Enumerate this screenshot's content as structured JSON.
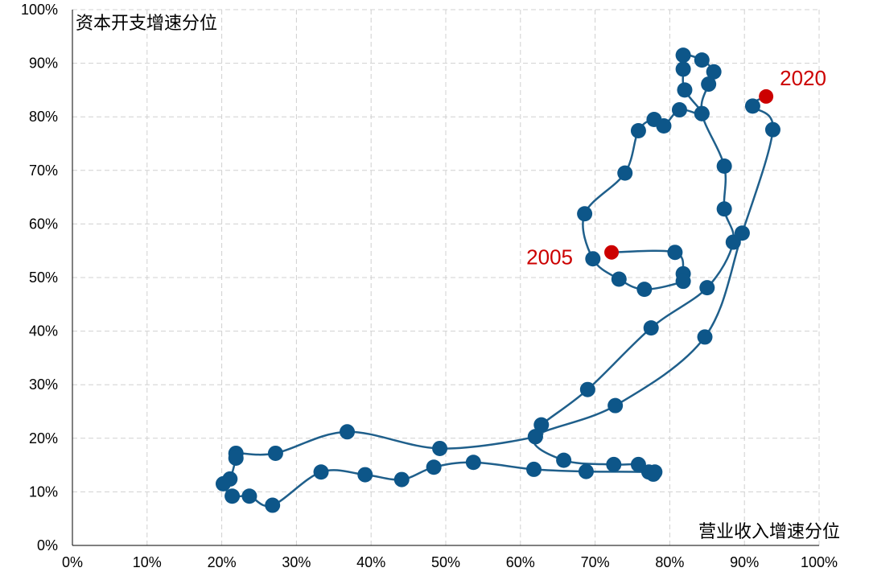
{
  "chart_data": {
    "type": "scatter",
    "xlabel": "营业收入增速分位",
    "ylabel": "资本开支增速分位",
    "xlim": [
      0,
      1
    ],
    "ylim": [
      0,
      1
    ],
    "x_ticks": [
      "0%",
      "10%",
      "20%",
      "30%",
      "40%",
      "50%",
      "60%",
      "70%",
      "80%",
      "90%",
      "100%"
    ],
    "y_ticks": [
      "0%",
      "10%",
      "20%",
      "30%",
      "40%",
      "50%",
      "60%",
      "70%",
      "80%",
      "90%",
      "100%"
    ],
    "grid": true,
    "series": [
      {
        "points": [
          [
            0.722,
            0.547
          ],
          [
            0.807,
            0.547
          ],
          [
            0.818,
            0.507
          ],
          [
            0.818,
            0.493
          ],
          [
            0.766,
            0.478
          ],
          [
            0.732,
            0.497
          ],
          [
            0.697,
            0.535
          ],
          [
            0.686,
            0.619
          ],
          [
            0.74,
            0.695
          ],
          [
            0.758,
            0.774
          ],
          [
            0.779,
            0.795
          ],
          [
            0.792,
            0.783
          ],
          [
            0.813,
            0.813
          ],
          [
            0.843,
            0.806
          ],
          [
            0.82,
            0.85
          ],
          [
            0.818,
            0.889
          ],
          [
            0.818,
            0.915
          ],
          [
            0.843,
            0.906
          ],
          [
            0.859,
            0.884
          ],
          [
            0.852,
            0.861
          ],
          [
            0.843,
            0.806
          ],
          [
            0.873,
            0.708
          ],
          [
            0.873,
            0.628
          ],
          [
            0.885,
            0.566
          ],
          [
            0.85,
            0.481
          ],
          [
            0.775,
            0.406
          ],
          [
            0.69,
            0.291
          ],
          [
            0.628,
            0.225
          ],
          [
            0.62,
            0.203
          ],
          [
            0.492,
            0.181
          ],
          [
            0.368,
            0.212
          ],
          [
            0.272,
            0.172
          ],
          [
            0.219,
            0.172
          ],
          [
            0.219,
            0.163
          ],
          [
            0.211,
            0.124
          ],
          [
            0.202,
            0.115
          ],
          [
            0.214,
            0.092
          ],
          [
            0.237,
            0.092
          ],
          [
            0.268,
            0.075
          ],
          [
            0.333,
            0.137
          ],
          [
            0.392,
            0.132
          ],
          [
            0.441,
            0.123
          ],
          [
            0.484,
            0.146
          ],
          [
            0.537,
            0.155
          ],
          [
            0.618,
            0.142
          ],
          [
            0.688,
            0.138
          ],
          [
            0.772,
            0.137
          ],
          [
            0.778,
            0.133
          ],
          [
            0.78,
            0.137
          ],
          [
            0.758,
            0.151
          ],
          [
            0.725,
            0.151
          ],
          [
            0.658,
            0.159
          ],
          [
            0.62,
            0.203
          ],
          [
            0.727,
            0.261
          ],
          [
            0.847,
            0.389
          ],
          [
            0.897,
            0.583
          ],
          [
            0.938,
            0.776
          ],
          [
            0.911,
            0.82
          ],
          [
            0.929,
            0.838
          ]
        ]
      }
    ],
    "highlights": [
      {
        "label": "2005",
        "x": 0.722,
        "y": 0.547,
        "color": "#cc0000"
      },
      {
        "label": "2020",
        "x": 0.929,
        "y": 0.838,
        "color": "#cc0000"
      }
    ],
    "line_color": "#1f5f8b",
    "marker_color": "#0d5689",
    "grid_color": "#d0d0d0"
  }
}
